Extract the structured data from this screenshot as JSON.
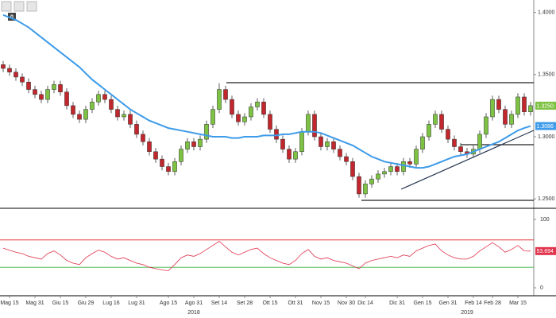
{
  "toolbar": {
    "badge": "0"
  },
  "chart_data": {
    "type": "candlestick",
    "categories": [
      null,
      "Mag 15",
      null,
      null,
      null,
      "Mag 31",
      null,
      null,
      null,
      "Giu 15",
      null,
      null,
      null,
      "Giu 29",
      null,
      null,
      null,
      "Lug 16",
      null,
      null,
      null,
      "Lug 31",
      null,
      null,
      null,
      null,
      "Ago 15",
      null,
      null,
      null,
      "Ago 31",
      null,
      null,
      null,
      "Set 14",
      null,
      null,
      null,
      "Set 28",
      null,
      null,
      null,
      "Ott 15",
      null,
      null,
      null,
      "Ott 31",
      null,
      null,
      null,
      "Nov 15",
      null,
      null,
      null,
      "Nov 30",
      null,
      null,
      "Dic 14",
      null,
      null,
      null,
      null,
      "Dic 31",
      null,
      null,
      null,
      "Gen 15",
      null,
      null,
      null,
      "Gen 31",
      null,
      null,
      null,
      "Feb 14",
      null,
      null,
      "Feb 28",
      null,
      null,
      null,
      "Mar 15",
      null,
      null
    ],
    "years": [
      null,
      null,
      null,
      null,
      null,
      null,
      null,
      null,
      null,
      null,
      null,
      null,
      null,
      null,
      null,
      null,
      null,
      null,
      null,
      null,
      null,
      null,
      null,
      null,
      null,
      null,
      null,
      null,
      null,
      null,
      "2018",
      null,
      null,
      null,
      null,
      null,
      null,
      null,
      null,
      null,
      null,
      null,
      null,
      null,
      null,
      null,
      null,
      null,
      null,
      null,
      null,
      null,
      null,
      null,
      null,
      null,
      null,
      null,
      null,
      null,
      null,
      null,
      null,
      null,
      null,
      null,
      null,
      null,
      null,
      null,
      null,
      null,
      null,
      "2019",
      null,
      null,
      null,
      null,
      null,
      null,
      null,
      null,
      null,
      null
    ],
    "open": [
      1.358,
      1.355,
      1.352,
      1.348,
      1.344,
      1.338,
      1.334,
      1.33,
      1.338,
      1.342,
      1.336,
      1.325,
      1.318,
      1.314,
      1.322,
      1.328,
      1.334,
      1.33,
      1.322,
      1.316,
      1.318,
      1.31,
      1.302,
      1.296,
      1.288,
      1.282,
      1.276,
      1.272,
      1.28,
      1.29,
      1.296,
      1.292,
      1.298,
      1.31,
      1.322,
      1.338,
      1.33,
      1.318,
      1.312,
      1.316,
      1.324,
      1.328,
      1.318,
      1.306,
      1.298,
      1.29,
      1.282,
      1.288,
      1.304,
      1.318,
      1.3,
      1.292,
      1.296,
      1.29,
      1.284,
      1.28,
      1.268,
      1.254,
      1.262,
      1.266,
      1.27,
      1.272,
      1.276,
      1.272,
      1.28,
      1.278,
      1.29,
      1.3,
      1.31,
      1.318,
      1.306,
      1.298,
      1.292,
      1.288,
      1.286,
      1.29,
      1.302,
      1.316,
      1.33,
      1.322,
      1.31,
      1.318,
      1.332,
      1.32
    ],
    "high": [
      1.361,
      1.358,
      1.355,
      1.351,
      1.347,
      1.341,
      1.337,
      1.341,
      1.345,
      1.345,
      1.339,
      1.328,
      1.321,
      1.325,
      1.331,
      1.337,
      1.337,
      1.333,
      1.325,
      1.321,
      1.321,
      1.313,
      1.305,
      1.299,
      1.291,
      1.285,
      1.279,
      1.283,
      1.293,
      1.299,
      1.299,
      1.301,
      1.313,
      1.325,
      1.343,
      1.341,
      1.333,
      1.321,
      1.319,
      1.327,
      1.331,
      1.331,
      1.321,
      1.309,
      1.301,
      1.293,
      1.291,
      1.307,
      1.321,
      1.321,
      1.303,
      1.299,
      1.299,
      1.293,
      1.287,
      1.283,
      1.271,
      1.265,
      1.269,
      1.273,
      1.275,
      1.279,
      1.279,
      1.283,
      1.283,
      1.293,
      1.303,
      1.313,
      1.321,
      1.321,
      1.309,
      1.301,
      1.295,
      1.291,
      1.293,
      1.305,
      1.319,
      1.333,
      1.333,
      1.325,
      1.321,
      1.335,
      1.335,
      1.328
    ],
    "low": [
      1.352,
      1.349,
      1.345,
      1.341,
      1.335,
      1.331,
      1.327,
      1.327,
      1.335,
      1.333,
      1.322,
      1.315,
      1.311,
      1.311,
      1.319,
      1.325,
      1.327,
      1.319,
      1.313,
      1.313,
      1.307,
      1.299,
      1.293,
      1.285,
      1.279,
      1.273,
      1.269,
      1.269,
      1.277,
      1.287,
      1.289,
      1.289,
      1.295,
      1.307,
      1.319,
      1.327,
      1.315,
      1.309,
      1.309,
      1.313,
      1.321,
      1.315,
      1.303,
      1.295,
      1.287,
      1.279,
      1.279,
      1.285,
      1.301,
      1.297,
      1.289,
      1.289,
      1.287,
      1.281,
      1.277,
      1.265,
      1.251,
      1.251,
      1.259,
      1.263,
      1.267,
      1.269,
      1.269,
      1.269,
      1.275,
      1.275,
      1.287,
      1.297,
      1.307,
      1.303,
      1.295,
      1.289,
      1.285,
      1.283,
      1.283,
      1.287,
      1.299,
      1.313,
      1.319,
      1.307,
      1.307,
      1.315,
      1.317,
      1.317
    ],
    "close": [
      1.355,
      1.352,
      1.348,
      1.344,
      1.338,
      1.334,
      1.33,
      1.338,
      1.342,
      1.336,
      1.325,
      1.318,
      1.314,
      1.322,
      1.328,
      1.334,
      1.33,
      1.322,
      1.316,
      1.318,
      1.31,
      1.302,
      1.296,
      1.288,
      1.282,
      1.276,
      1.272,
      1.28,
      1.29,
      1.296,
      1.292,
      1.298,
      1.31,
      1.322,
      1.338,
      1.33,
      1.318,
      1.312,
      1.316,
      1.324,
      1.328,
      1.318,
      1.306,
      1.298,
      1.29,
      1.282,
      1.288,
      1.304,
      1.318,
      1.3,
      1.292,
      1.296,
      1.29,
      1.284,
      1.28,
      1.268,
      1.254,
      1.262,
      1.266,
      1.27,
      1.272,
      1.276,
      1.272,
      1.28,
      1.278,
      1.29,
      1.3,
      1.31,
      1.318,
      1.306,
      1.298,
      1.292,
      1.288,
      1.286,
      1.29,
      1.302,
      1.316,
      1.33,
      1.322,
      1.31,
      1.318,
      1.332,
      1.32,
      1.325
    ],
    "last_close_label": "1.3250",
    "up_color": "#7dc242",
    "down_color": "#c1272d",
    "ylim": [
      1.245,
      1.41
    ],
    "yticks": [
      {
        "value": 1.4,
        "label": "1.4000"
      },
      {
        "value": 1.35,
        "label": "1.3500"
      },
      {
        "value": 1.3,
        "label": "1.3000"
      },
      {
        "value": 1.25,
        "label": "1.2500"
      }
    ],
    "ma": {
      "color": "#3d9be9",
      "last_label": "1.3086",
      "values": [
        1.398,
        1.396,
        1.394,
        1.391,
        1.388,
        1.384,
        1.38,
        1.376,
        1.372,
        1.368,
        1.364,
        1.36,
        1.356,
        1.351,
        1.346,
        1.342,
        1.338,
        1.334,
        1.33,
        1.326,
        1.322,
        1.319,
        1.316,
        1.313,
        1.311,
        1.309,
        1.307,
        1.306,
        1.305,
        1.304,
        1.303,
        1.302,
        1.301,
        1.3,
        1.3,
        1.3,
        1.299,
        1.299,
        1.3,
        1.3,
        1.3,
        1.301,
        1.301,
        1.301,
        1.302,
        1.302,
        1.303,
        1.304,
        1.304,
        1.304,
        1.303,
        1.301,
        1.299,
        1.297,
        1.295,
        1.293,
        1.29,
        1.287,
        1.284,
        1.282,
        1.28,
        1.279,
        1.278,
        1.277,
        1.276,
        1.275,
        1.275,
        1.276,
        1.278,
        1.28,
        1.282,
        1.284,
        1.285,
        1.286,
        1.288,
        1.29,
        1.292,
        1.294,
        1.296,
        1.299,
        1.302,
        1.305,
        1.307,
        1.3086
      ]
    },
    "rsi": {
      "color": "#e0334c",
      "last_label": "53.694",
      "ylim": [
        0,
        100
      ],
      "yticks": [
        100,
        0
      ],
      "levels": [
        70,
        30
      ],
      "level_colors": [
        "#e02020",
        "#3cb043"
      ],
      "values": [
        58,
        55,
        52,
        50,
        46,
        44,
        42,
        50,
        54,
        48,
        40,
        36,
        34,
        44,
        50,
        55,
        52,
        46,
        42,
        44,
        40,
        36,
        34,
        30,
        28,
        26,
        25,
        34,
        44,
        48,
        46,
        50,
        56,
        62,
        68,
        60,
        52,
        48,
        52,
        56,
        58,
        50,
        44,
        40,
        36,
        34,
        40,
        50,
        56,
        46,
        42,
        44,
        40,
        38,
        36,
        32,
        28,
        36,
        40,
        42,
        44,
        46,
        44,
        48,
        46,
        54,
        58,
        62,
        64,
        54,
        48,
        44,
        42,
        42,
        46,
        54,
        60,
        66,
        60,
        52,
        56,
        62,
        54,
        53.694
      ]
    }
  }
}
